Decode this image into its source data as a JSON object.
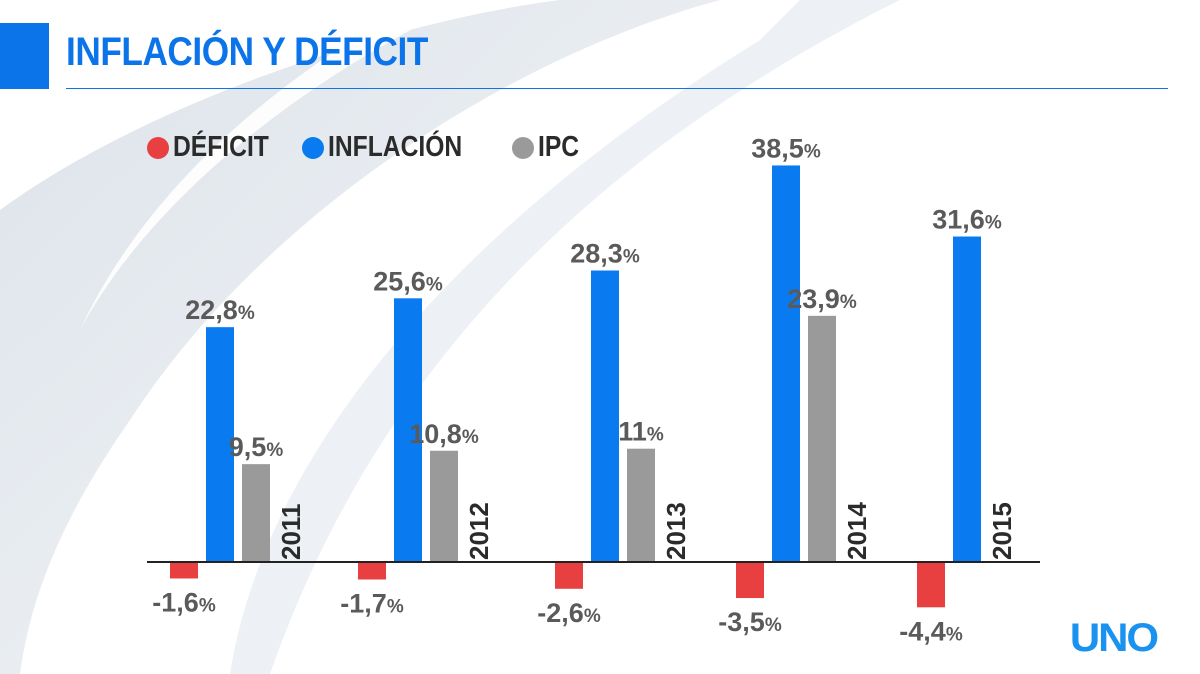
{
  "title": "INFLACIÓN Y DÉFICIT",
  "logo": "UNO",
  "colors": {
    "accent": "#0b74e8",
    "deficit": "#e84040",
    "inflacion": "#0a7af0",
    "ipc": "#9a9a9a",
    "label": "#5a5a5a",
    "year": "#2b2b2b"
  },
  "chart_data": {
    "type": "bar",
    "title": "INFLACIÓN Y DÉFICIT",
    "categories": [
      "2011",
      "2012",
      "2013",
      "2014",
      "2015"
    ],
    "series": [
      {
        "name": "DÉFICIT",
        "color": "#e84040",
        "values": [
          -1.6,
          -1.7,
          -2.6,
          -3.5,
          -4.4
        ]
      },
      {
        "name": "INFLACIÓN",
        "color": "#0a7af0",
        "values": [
          22.8,
          25.6,
          28.3,
          38.5,
          31.6
        ]
      },
      {
        "name": "IPC",
        "color": "#9a9a9a",
        "values": [
          9.5,
          10.8,
          11,
          23.9,
          null
        ]
      }
    ],
    "data_labels": true,
    "legend": "top-left",
    "grid": false,
    "unit": "%"
  }
}
